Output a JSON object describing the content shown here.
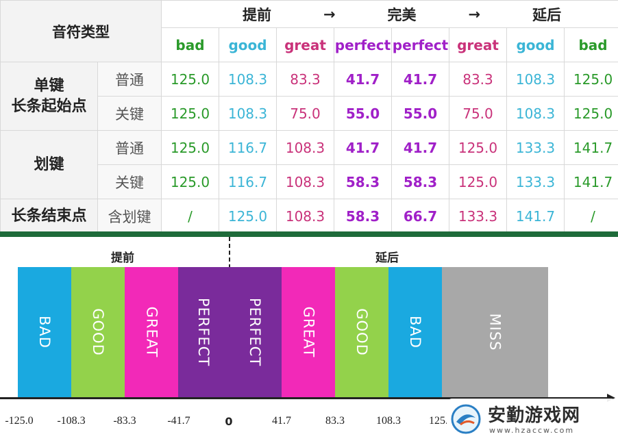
{
  "table": {
    "corner": "音符类型",
    "phases": [
      "提前",
      "→",
      "完美",
      "→",
      "延后"
    ],
    "grades": [
      {
        "label": "bad",
        "class": "bad"
      },
      {
        "label": "good",
        "class": "good"
      },
      {
        "label": "great",
        "class": "great"
      },
      {
        "label": "perfect",
        "class": "perfect"
      },
      {
        "label": "perfect",
        "class": "perfect"
      },
      {
        "label": "great",
        "class": "great"
      },
      {
        "label": "good",
        "class": "good"
      },
      {
        "label": "bad",
        "class": "bad"
      }
    ],
    "groups": [
      {
        "label": "单键\n长条起始点",
        "rows": [
          {
            "sub": "普通",
            "values": [
              "125.0",
              "108.3",
              "83.3",
              "41.7",
              "41.7",
              "83.3",
              "108.3",
              "125.0"
            ]
          },
          {
            "sub": "关键",
            "values": [
              "125.0",
              "108.3",
              "75.0",
              "55.0",
              "55.0",
              "75.0",
              "108.3",
              "125.0"
            ]
          }
        ]
      },
      {
        "label": "划键",
        "rows": [
          {
            "sub": "普通",
            "values": [
              "125.0",
              "116.7",
              "108.3",
              "41.7",
              "41.7",
              "125.0",
              "133.3",
              "141.7"
            ]
          },
          {
            "sub": "关键",
            "values": [
              "125.0",
              "116.7",
              "108.3",
              "58.3",
              "58.3",
              "125.0",
              "133.3",
              "141.7"
            ]
          }
        ]
      },
      {
        "label": "长条结束点",
        "rows": [
          {
            "sub": "含划键",
            "values": [
              "/",
              "125.0",
              "108.3",
              "58.3",
              "66.7",
              "133.3",
              "141.7",
              "/"
            ]
          }
        ]
      }
    ]
  },
  "diagram": {
    "early_label": "提前",
    "late_label": "延后",
    "segments": [
      {
        "label": "BAD",
        "color": "#1aa9e0"
      },
      {
        "label": "GOOD",
        "color": "#93d24b"
      },
      {
        "label": "GREAT",
        "color": "#f229b8"
      },
      {
        "label": "PERFECT",
        "color": "#7a2b9b"
      },
      {
        "label": "PERFECT",
        "color": "#7a2b9b"
      },
      {
        "label": "GREAT",
        "color": "#f229b8"
      },
      {
        "label": "GOOD",
        "color": "#93d24b"
      },
      {
        "label": "BAD",
        "color": "#1aa9e0"
      },
      {
        "label": "MISS",
        "color": "#a8a8a8"
      }
    ],
    "ticks": [
      "-125.0",
      "-108.3",
      "-83.3",
      "-41.7",
      "0",
      "41.7",
      "83.3",
      "108.3",
      "125."
    ]
  },
  "watermark": {
    "title": "安勤游戏网",
    "url": "www.hzaccw.com"
  }
}
